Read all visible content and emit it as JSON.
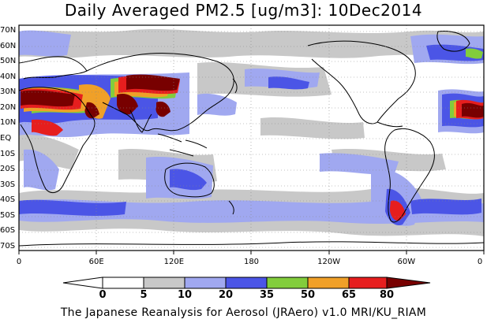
{
  "title": "Daily Averaged PM2.5 [ug/m3]: 10Dec2014",
  "footer": "The Japanese Reanalysis for Aerosol (JRAero) v1.0 MRI/KU_RIAM",
  "lat_labels": [
    "70N",
    "60N",
    "50N",
    "40N",
    "30N",
    "20N",
    "10N",
    "EQ",
    "10S",
    "20S",
    "30S",
    "40S",
    "50S",
    "60S",
    "70S"
  ],
  "lon_labels": [
    "0",
    "60E",
    "120E",
    "180",
    "120W",
    "60W",
    "0"
  ],
  "colorbar": {
    "ticks": [
      "0",
      "5",
      "10",
      "20",
      "35",
      "50",
      "65",
      "80"
    ],
    "colors": [
      "#ffffff",
      "#c8c8c8",
      "#a0a8f0",
      "#4b55e6",
      "#82cd3c",
      "#f0a028",
      "#e61e1e",
      "#780000"
    ]
  }
}
